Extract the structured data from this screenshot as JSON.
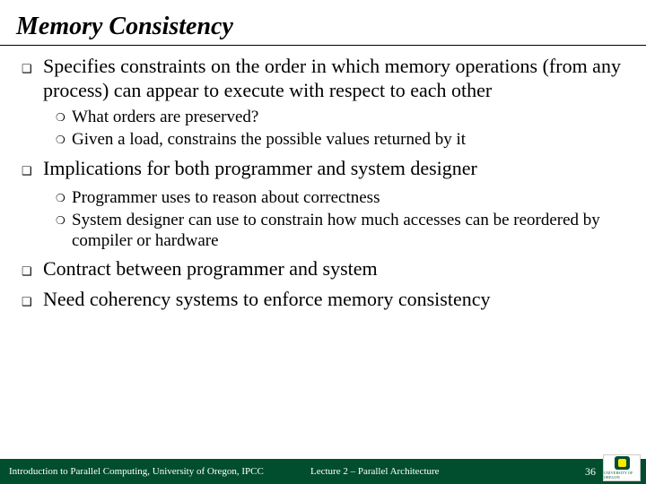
{
  "colors": {
    "footer_bg": "#004e2e",
    "footer_text": "#ffffff",
    "body_text": "#000000",
    "logo_green": "#004e2e",
    "logo_yellow": "#ffe800"
  },
  "typography": {
    "title_fontsize": 28,
    "lvl1_fontsize": 22,
    "lvl2_fontsize": 19,
    "footer_fontsize": 11
  },
  "title": "Memory Consistency",
  "bullets": [
    {
      "text": "Specifies constraints on the order in which memory operations (from any process) can appear to execute with respect to each other",
      "sub": [
        "What orders are preserved?",
        "Given a load, constrains the possible values returned by it"
      ]
    },
    {
      "text": "Implications for both programmer and system designer",
      "sub": [
        "Programmer uses to reason about correctness",
        "System designer can use to constrain how much accesses can be reordered by compiler or hardware"
      ]
    },
    {
      "text": "Contract between programmer and system",
      "sub": []
    },
    {
      "text": "Need coherency systems to enforce memory consistency",
      "sub": []
    }
  ],
  "footer": {
    "left": "Introduction to Parallel Computing, University of Oregon, IPCC",
    "center": "Lecture 2 – Parallel Architecture",
    "page": "36"
  },
  "logo_text": "UNIVERSITY OF OREGON"
}
